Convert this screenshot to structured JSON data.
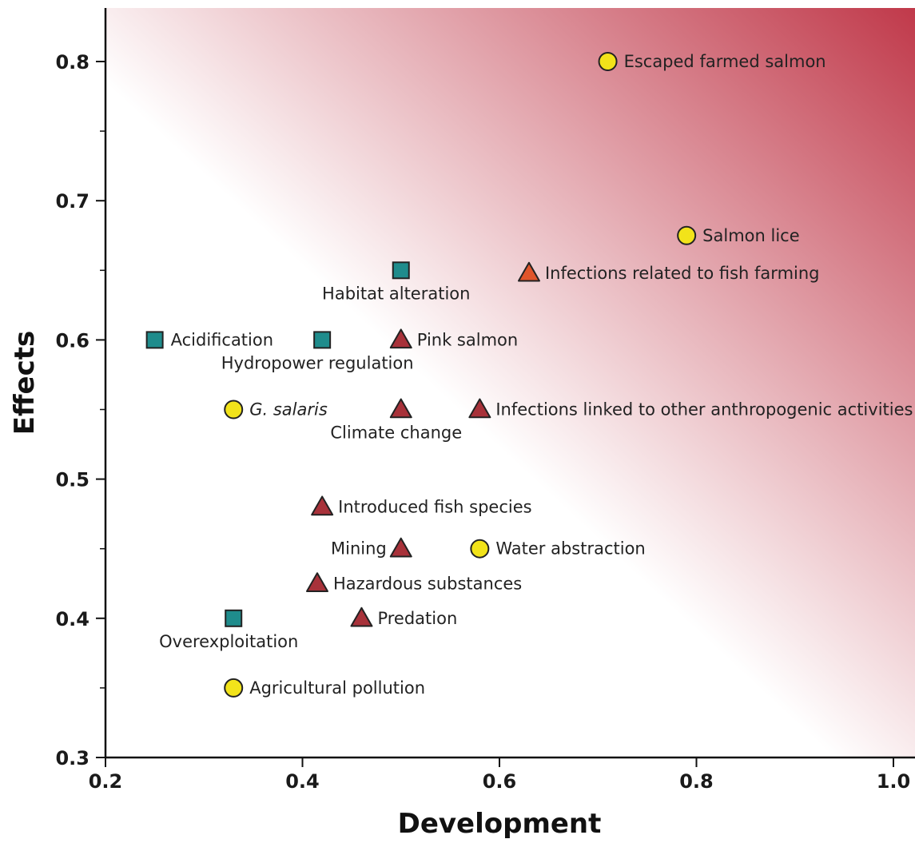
{
  "chart_data": {
    "type": "scatter",
    "xlabel": "Development",
    "ylabel": "Effects",
    "xlim": [
      0.2,
      1.02
    ],
    "ylim": [
      0.3,
      0.84
    ],
    "x_ticks": [
      0.2,
      0.4,
      0.6,
      0.8,
      1.0
    ],
    "x_tick_labels": [
      "0.2",
      "0.4",
      "0.6",
      "0.8",
      "1.0"
    ],
    "y_ticks": [
      0.3,
      0.4,
      0.5,
      0.6,
      0.7,
      0.8
    ],
    "y_tick_labels": [
      "0.3",
      "0.4",
      "0.5",
      "0.6",
      "0.7",
      "0.8"
    ],
    "y_minor_ticks": [
      0.35,
      0.45,
      0.55,
      0.65,
      0.75
    ],
    "grid": false,
    "background": "gradient white (lower-left) to red (upper-right)",
    "colors": {
      "circle": "#f2e31a",
      "square": "#1f8c8c",
      "triangle": "#a8323a",
      "triangle_orange": "#e0542a",
      "gradient_end": "#c0394a"
    },
    "points": [
      {
        "label": "Escaped farmed salmon",
        "x": 0.71,
        "y": 0.8,
        "shape": "circle",
        "label_pos": "right"
      },
      {
        "label": "Salmon lice",
        "x": 0.79,
        "y": 0.675,
        "shape": "circle",
        "label_pos": "right"
      },
      {
        "label": "Infections related to fish farming",
        "x": 0.63,
        "y": 0.648,
        "shape": "triangle-orange",
        "label_pos": "right"
      },
      {
        "label": "Habitat alteration",
        "x": 0.5,
        "y": 0.65,
        "shape": "square",
        "label_pos": "below"
      },
      {
        "label": "Acidification",
        "x": 0.25,
        "y": 0.6,
        "shape": "square",
        "label_pos": "right"
      },
      {
        "label": "Hydropower regulation",
        "x": 0.42,
        "y": 0.6,
        "shape": "square",
        "label_pos": "below"
      },
      {
        "label": "Pink salmon",
        "x": 0.5,
        "y": 0.6,
        "shape": "triangle",
        "label_pos": "right"
      },
      {
        "label": "G. salaris",
        "x": 0.33,
        "y": 0.55,
        "shape": "circle",
        "label_pos": "right",
        "italic": true
      },
      {
        "label": "Climate change",
        "x": 0.5,
        "y": 0.55,
        "shape": "triangle",
        "label_pos": "below"
      },
      {
        "label": "Infections linked to other anthropogenic activities",
        "x": 0.58,
        "y": 0.55,
        "shape": "triangle",
        "label_pos": "right"
      },
      {
        "label": "Introduced fish species",
        "x": 0.42,
        "y": 0.48,
        "shape": "triangle",
        "label_pos": "right"
      },
      {
        "label": "Mining",
        "x": 0.5,
        "y": 0.45,
        "shape": "triangle",
        "label_pos": "left"
      },
      {
        "label": "Water abstraction",
        "x": 0.58,
        "y": 0.45,
        "shape": "circle",
        "label_pos": "right"
      },
      {
        "label": "Hazardous substances",
        "x": 0.415,
        "y": 0.425,
        "shape": "triangle",
        "label_pos": "right"
      },
      {
        "label": "Predation",
        "x": 0.46,
        "y": 0.4,
        "shape": "triangle",
        "label_pos": "right"
      },
      {
        "label": "Overexploitation",
        "x": 0.33,
        "y": 0.4,
        "shape": "square",
        "label_pos": "below"
      },
      {
        "label": "Agricultural pollution",
        "x": 0.33,
        "y": 0.35,
        "shape": "circle",
        "label_pos": "right"
      }
    ]
  }
}
